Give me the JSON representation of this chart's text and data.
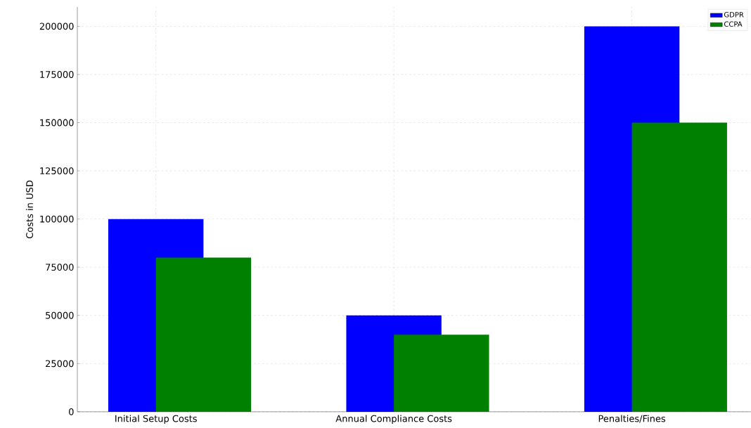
{
  "chart_data": {
    "type": "bar",
    "ylabel": "Costs in USD",
    "categories": [
      "Initial Setup Costs",
      "Annual Compliance Costs",
      "Penalties/Fines"
    ],
    "series": [
      {
        "name": "GDPR",
        "color": "#0000ff",
        "values": [
          100000,
          50000,
          200000
        ]
      },
      {
        "name": "CCPA",
        "color": "#008000",
        "values": [
          80000,
          40000,
          150000
        ]
      }
    ],
    "ylim": [
      0,
      210000
    ],
    "yticks": [
      0,
      25000,
      50000,
      75000,
      100000,
      125000,
      150000,
      175000,
      200000
    ],
    "grid": true,
    "legend": "top right"
  }
}
